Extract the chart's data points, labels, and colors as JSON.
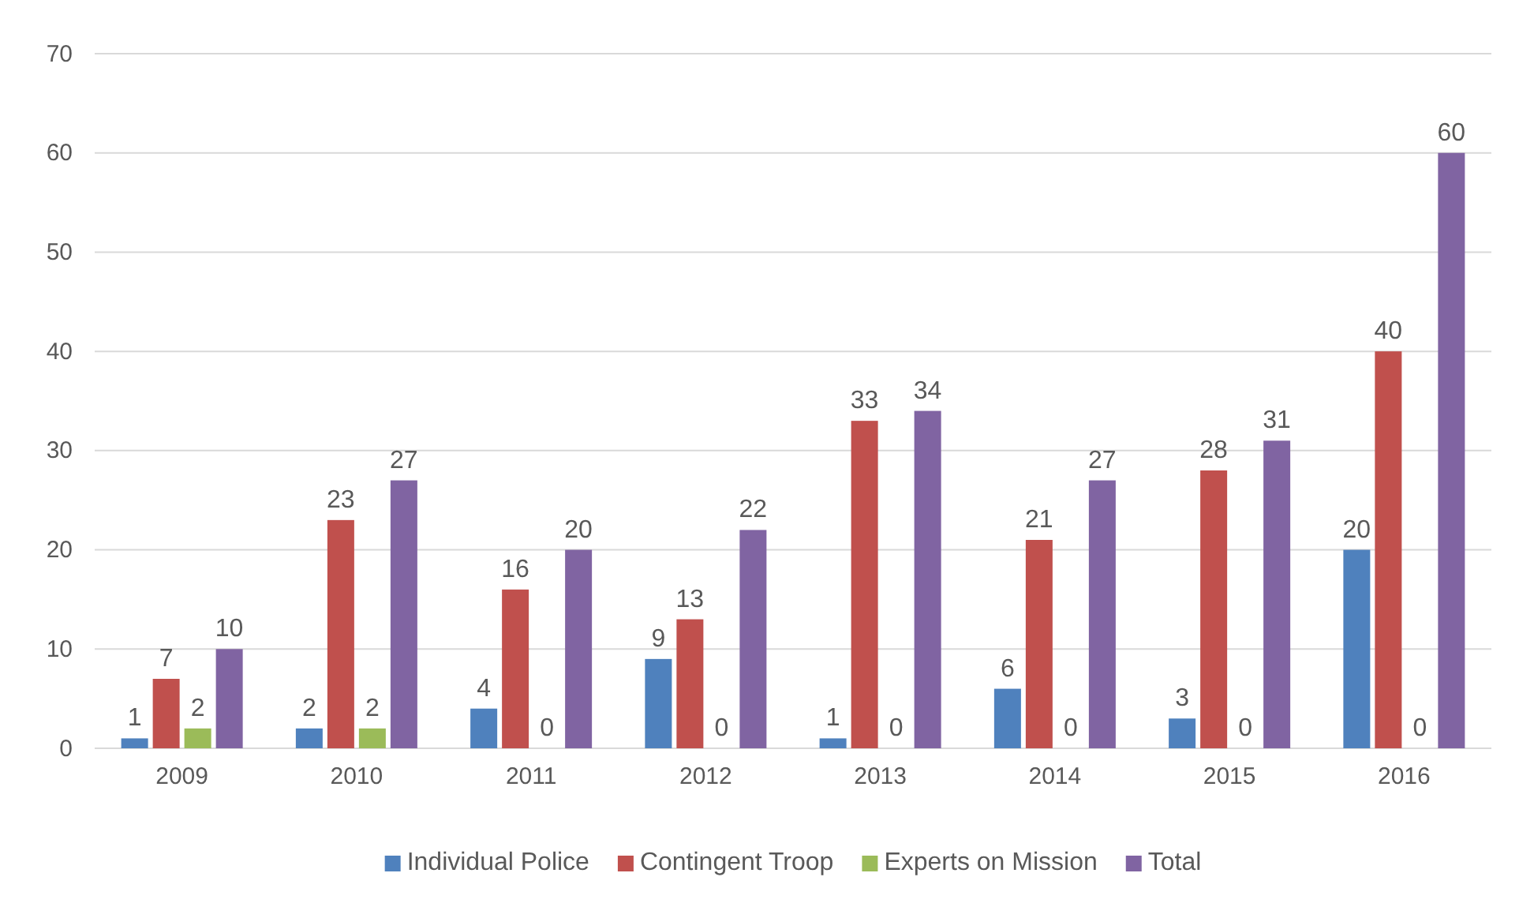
{
  "chart_data": {
    "type": "bar",
    "categories": [
      "2009",
      "2010",
      "2011",
      "2012",
      "2013",
      "2014",
      "2015",
      "2016"
    ],
    "series": [
      {
        "name": "Individual Police",
        "color": "#4f81bd",
        "values": [
          1,
          2,
          4,
          9,
          1,
          6,
          3,
          20
        ]
      },
      {
        "name": "Contingent Troop",
        "color": "#c0504d",
        "values": [
          7,
          23,
          16,
          13,
          33,
          21,
          28,
          40
        ]
      },
      {
        "name": "Experts on Mission",
        "color": "#9bbb59",
        "values": [
          2,
          2,
          0,
          0,
          0,
          0,
          0,
          0
        ]
      },
      {
        "name": "Total",
        "color": "#8064a2",
        "values": [
          10,
          27,
          20,
          22,
          34,
          27,
          31,
          60
        ]
      }
    ],
    "ylim": [
      0,
      70
    ],
    "yticks": [
      0,
      10,
      20,
      30,
      40,
      50,
      60,
      70
    ],
    "grid": "y",
    "data_labels": true,
    "legend": "bottom"
  }
}
